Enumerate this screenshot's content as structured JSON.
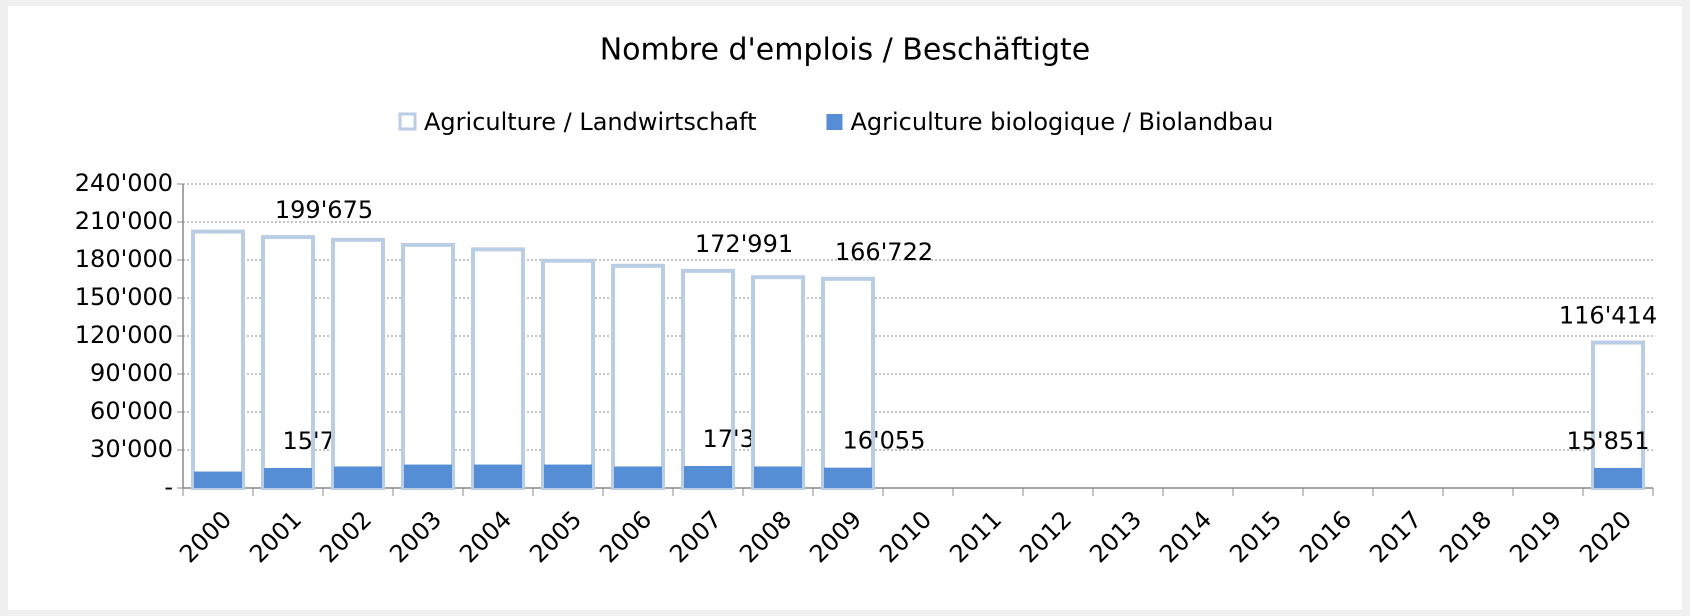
{
  "chart_data": {
    "type": "bar",
    "title": "Nombre d'emplois / Beschäftigte",
    "categories": [
      "2000",
      "2001",
      "2002",
      "2003",
      "2004",
      "2005",
      "2006",
      "2007",
      "2008",
      "2009",
      "2010",
      "2011",
      "2012",
      "2013",
      "2014",
      "2015",
      "2016",
      "2017",
      "2018",
      "2019",
      "2020"
    ],
    "series": [
      {
        "name": "Agriculture / Landwirtschaft",
        "color": "#b9cde5",
        "values": [
          204000,
          199675,
          197500,
          193500,
          190000,
          181000,
          177000,
          172991,
          168000,
          166722,
          null,
          null,
          null,
          null,
          null,
          null,
          null,
          null,
          null,
          null,
          116414
        ],
        "value_labels": [
          null,
          "199'675",
          null,
          null,
          null,
          null,
          null,
          "172'991",
          null,
          "166'722",
          null,
          null,
          null,
          null,
          null,
          null,
          null,
          null,
          null,
          null,
          "116'414"
        ]
      },
      {
        "name": "Agriculture biologique / Biolandbau",
        "color": "#558ed5",
        "values": [
          13000,
          15794,
          17000,
          18500,
          18500,
          18500,
          17000,
          17368,
          17000,
          16055,
          null,
          null,
          null,
          null,
          null,
          null,
          null,
          null,
          null,
          null,
          15851
        ],
        "value_labels": [
          null,
          "15'794",
          null,
          null,
          null,
          null,
          null,
          "17'368",
          null,
          "16'055",
          null,
          null,
          null,
          null,
          null,
          null,
          null,
          null,
          null,
          null,
          "15'851"
        ]
      }
    ],
    "ylim": [
      0,
      240000
    ],
    "yticks": [
      {
        "value": 0,
        "label": "-"
      },
      {
        "value": 30000,
        "label": "30'000"
      },
      {
        "value": 60000,
        "label": "60'000"
      },
      {
        "value": 90000,
        "label": "90'000"
      },
      {
        "value": 120000,
        "label": "120'000"
      },
      {
        "value": 150000,
        "label": "150'000"
      },
      {
        "value": 180000,
        "label": "180'000"
      },
      {
        "value": 210000,
        "label": "210'000"
      },
      {
        "value": 240000,
        "label": "240'000"
      }
    ],
    "grid": true,
    "legend": "top"
  }
}
